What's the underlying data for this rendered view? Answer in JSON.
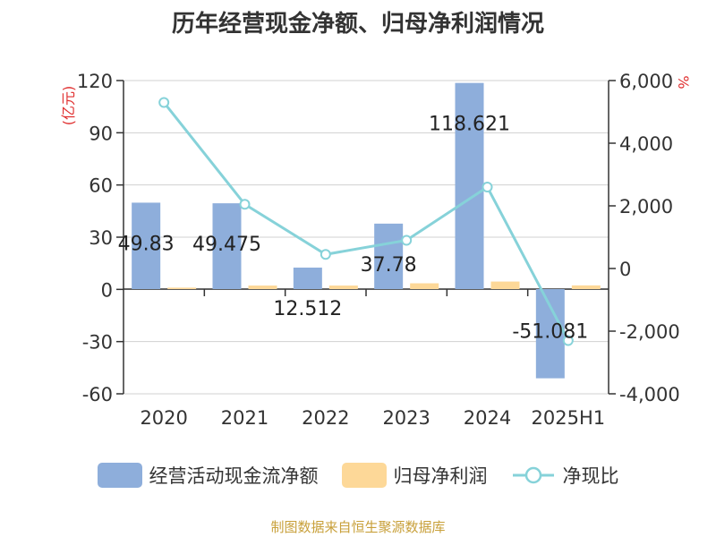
{
  "title": "历年经营现金净额、归母净利润情况",
  "source": "制图数据来自恒生聚源数据库",
  "colors": {
    "operating_cash": "#8eaedb",
    "net_profit": "#fdd898",
    "ratio": "#86d2d9",
    "axis_unit": "#e03030",
    "axis": "#333333",
    "grid": "#d0d0d0",
    "source": "#c8a03a"
  },
  "chart_data": {
    "type": "bar",
    "categories": [
      "2020",
      "2021",
      "2022",
      "2023",
      "2024",
      "2025H1"
    ],
    "series": [
      {
        "name": "经营活动现金流净额",
        "type": "bar",
        "axis": "left",
        "values": [
          49.83,
          49.475,
          12.512,
          37.78,
          118.621,
          -51.081
        ],
        "labels": [
          "49.83",
          "49.475",
          "12.512",
          "37.78",
          "118.621",
          "-51.081"
        ]
      },
      {
        "name": "归母净利润",
        "type": "bar",
        "axis": "left",
        "values": [
          1.0,
          2.2,
          2.2,
          3.5,
          4.5,
          2.3
        ]
      },
      {
        "name": "净现比",
        "type": "line",
        "axis": "right",
        "values": [
          5300,
          2050,
          450,
          900,
          2600,
          -2300
        ]
      }
    ],
    "y_left": {
      "label": "(亿元)",
      "ylim": [
        -60,
        120
      ],
      "ticks": [
        "120",
        "90",
        "60",
        "30",
        "0",
        "-30",
        "-60"
      ],
      "tick_values": [
        120,
        90,
        60,
        30,
        0,
        -30,
        -60
      ]
    },
    "y_right": {
      "label": "%",
      "ylim": [
        -4000,
        6000
      ],
      "ticks": [
        "6,000",
        "4,000",
        "2,000",
        "0",
        "-2,000",
        "-4,000"
      ],
      "tick_values": [
        6000,
        4000,
        2000,
        0,
        -2000,
        -4000
      ]
    },
    "grid": true,
    "legend_position": "bottom"
  }
}
